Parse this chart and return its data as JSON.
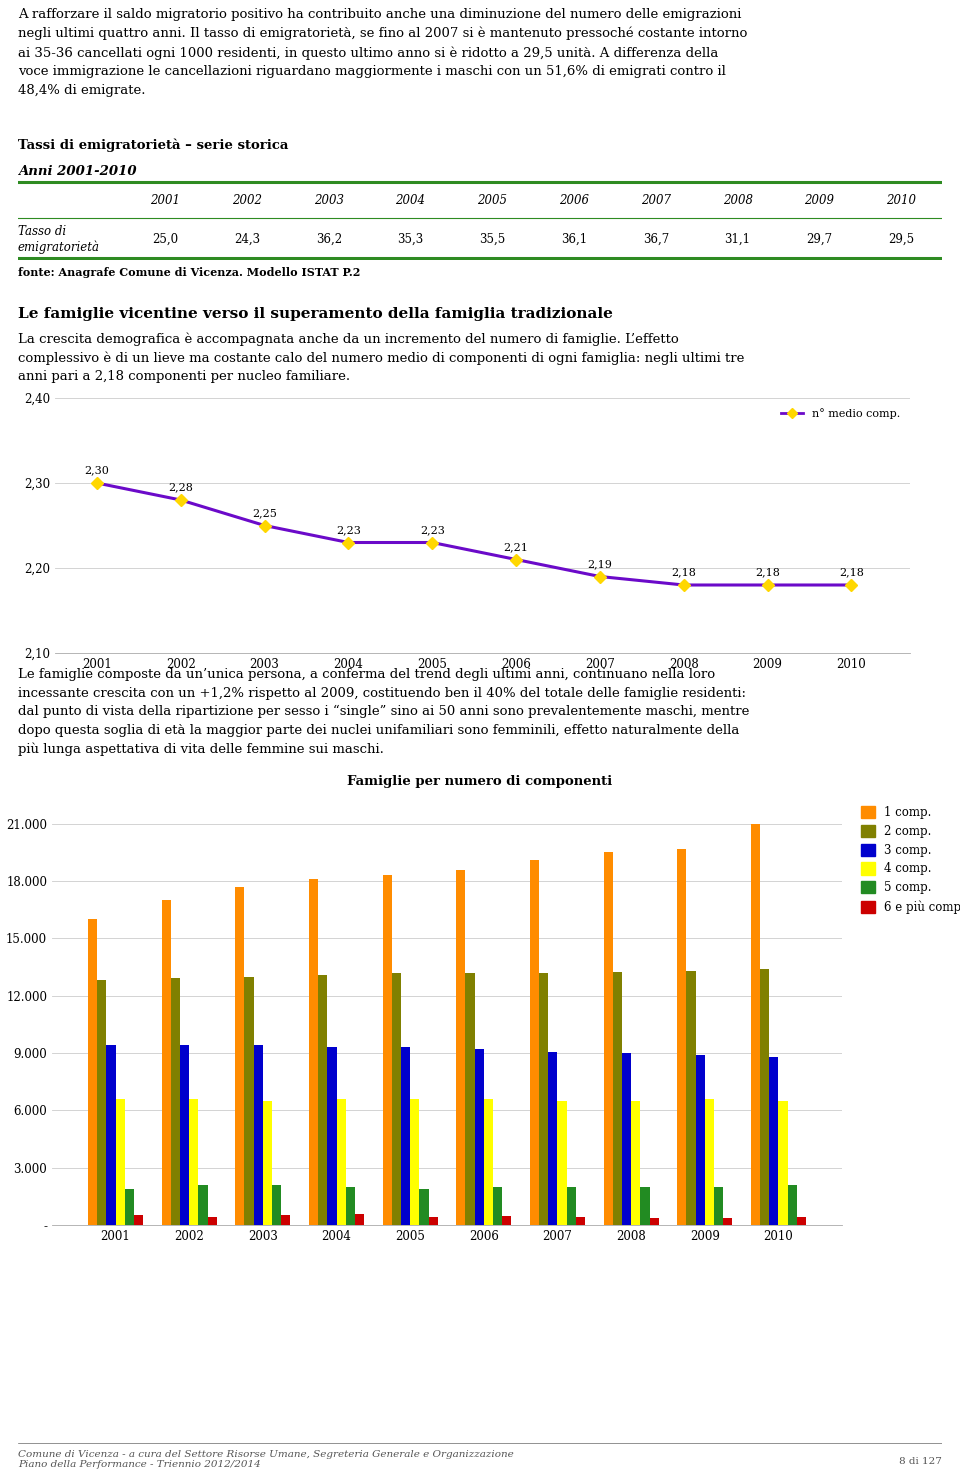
{
  "table_title1": "Tassi di emigratorietà – serie storica",
  "table_title2": "Anni 2001-2010",
  "table_years": [
    "2001",
    "2002",
    "2003",
    "2004",
    "2005",
    "2006",
    "2007",
    "2008",
    "2009",
    "2010"
  ],
  "table_row_label": "Tasso di\nemigratorietà",
  "table_values": [
    "25,0",
    "24,3",
    "36,2",
    "35,3",
    "35,5",
    "36,1",
    "36,7",
    "31,1",
    "29,7",
    "29,5"
  ],
  "table_source": "fonte: Anagrafe Comune di Vicenza. Modello ISTAT P.2",
  "section_title": "Le famiglie vicentine verso il superamento della famiglia tradizionale",
  "line_years": [
    2001,
    2002,
    2003,
    2004,
    2005,
    2006,
    2007,
    2008,
    2009,
    2010
  ],
  "line_values": [
    2.3,
    2.28,
    2.25,
    2.23,
    2.23,
    2.21,
    2.19,
    2.18,
    2.18,
    2.18
  ],
  "line_labels": [
    "2,30",
    "2,28",
    "2,25",
    "2,23",
    "2,23",
    "2,21",
    "2,19",
    "2,18",
    "2,18",
    "2,18"
  ],
  "line_color": "#6B0AC9",
  "line_marker_color": "#FFD700",
  "line_legend": "n° medio comp.",
  "line_ylim": [
    2.1,
    2.4
  ],
  "line_yticks": [
    2.1,
    2.2,
    2.3,
    2.4
  ],
  "bar_title": "Famiglie per numero di componenti",
  "bar_years": [
    2001,
    2002,
    2003,
    2004,
    2005,
    2006,
    2007,
    2008,
    2009,
    2010
  ],
  "bar_data": {
    "1 comp.": [
      16000,
      17000,
      17700,
      18100,
      18300,
      18600,
      19100,
      19500,
      19700,
      21000
    ],
    "2 comp.": [
      12800,
      12900,
      13000,
      13100,
      13200,
      13200,
      13200,
      13250,
      13300,
      13400
    ],
    "3 comp.": [
      9400,
      9400,
      9400,
      9300,
      9300,
      9200,
      9050,
      9000,
      8900,
      8800
    ],
    "4 comp.": [
      6600,
      6600,
      6500,
      6600,
      6600,
      6600,
      6500,
      6500,
      6600,
      6500
    ],
    "5 comp.": [
      1900,
      2100,
      2100,
      2000,
      1900,
      2000,
      2000,
      2000,
      2000,
      2100
    ],
    "6 e più comp": [
      500,
      400,
      500,
      550,
      400,
      450,
      400,
      350,
      350,
      400
    ]
  },
  "bar_colors": [
    "#FF8C00",
    "#808000",
    "#0000CD",
    "#FFFF00",
    "#228B22",
    "#CC0000"
  ],
  "bar_yticks": [
    0,
    3000,
    6000,
    9000,
    12000,
    15000,
    18000,
    21000
  ],
  "bar_ylim": [
    0,
    22500
  ],
  "footer_text1": "Comune di Vicenza - a cura del Settore Risorse Umane, Segreteria Generale e Organizzazione",
  "footer_text2": "Piano della Performance - Triennio 2012/2014",
  "footer_page": "8 di 127",
  "green_color": "#2E8B22",
  "bg_color": "#FFFFFF",
  "text_color": "#000000"
}
